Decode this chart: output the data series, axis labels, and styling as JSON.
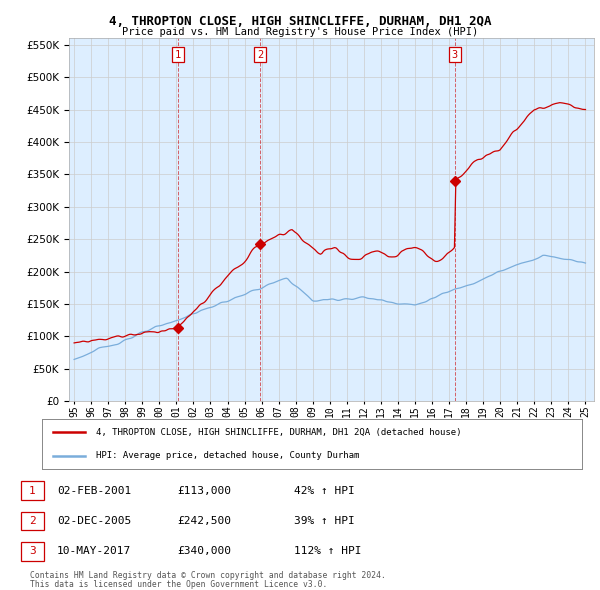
{
  "title": "4, THROPTON CLOSE, HIGH SHINCLIFFE, DURHAM, DH1 2QA",
  "subtitle": "Price paid vs. HM Land Registry's House Price Index (HPI)",
  "legend_line1": "4, THROPTON CLOSE, HIGH SHINCLIFFE, DURHAM, DH1 2QA (detached house)",
  "legend_line2": "HPI: Average price, detached house, County Durham",
  "sale1_date": "02-FEB-2001",
  "sale1_price": "£113,000",
  "sale1_hpi": "42% ↑ HPI",
  "sale2_date": "02-DEC-2005",
  "sale2_price": "£242,500",
  "sale2_hpi": "39% ↑ HPI",
  "sale3_date": "10-MAY-2017",
  "sale3_price": "£340,000",
  "sale3_hpi": "112% ↑ HPI",
  "footer1": "Contains HM Land Registry data © Crown copyright and database right 2024.",
  "footer2": "This data is licensed under the Open Government Licence v3.0.",
  "red_color": "#cc0000",
  "blue_color": "#7aaddb",
  "bg_fill_color": "#ddeeff",
  "background_color": "#ffffff",
  "grid_color": "#cccccc",
  "ylim_min": 0,
  "ylim_max": 560000,
  "x_start_year": 1995,
  "x_end_year": 2025
}
